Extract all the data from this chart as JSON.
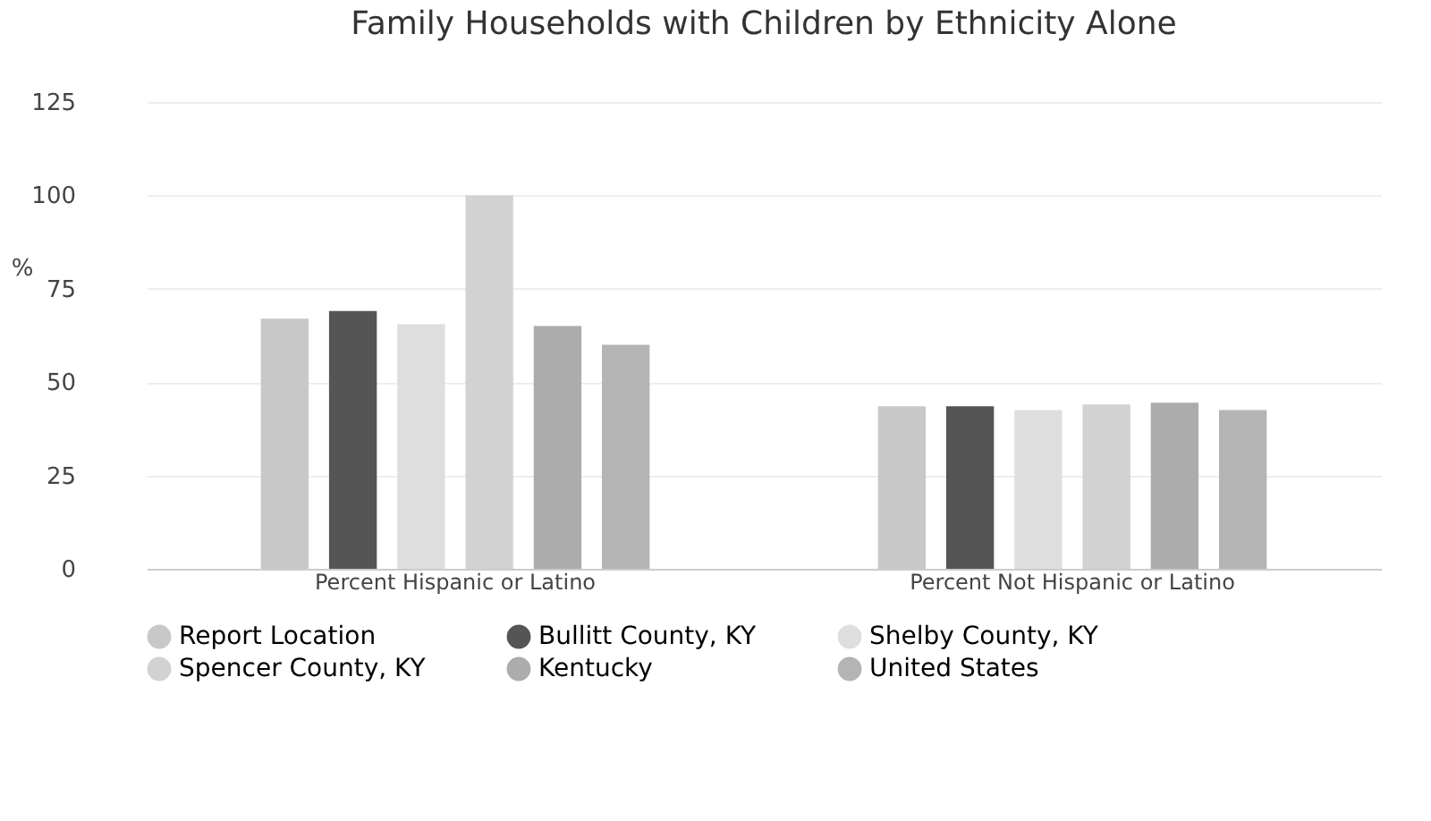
{
  "chart_data": {
    "type": "bar",
    "title": "Family Households with Children by Ethnicity Alone",
    "ylabel": "%",
    "categories": [
      "Percent Hispanic or Latino",
      "Percent Not Hispanic or Latino"
    ],
    "series": [
      {
        "name": "Report Location",
        "color": "#c8c8c8",
        "values": [
          67,
          43.5
        ]
      },
      {
        "name": "Bullitt County, KY",
        "color": "#555555",
        "values": [
          69,
          43.5
        ]
      },
      {
        "name": "Shelby County, KY",
        "color": "#dedede",
        "values": [
          65.5,
          42.5
        ]
      },
      {
        "name": "Spencer County, KY",
        "color": "#d2d2d2",
        "values": [
          100,
          44
        ]
      },
      {
        "name": "Kentucky",
        "color": "#acacac",
        "values": [
          65,
          44.5
        ]
      },
      {
        "name": "United States",
        "color": "#b4b4b4",
        "values": [
          60,
          42.5
        ]
      }
    ],
    "ylim": [
      0,
      125
    ],
    "yticks": [
      0,
      25,
      50,
      75,
      100,
      125
    ],
    "grid": "y",
    "legend": "bottom"
  }
}
